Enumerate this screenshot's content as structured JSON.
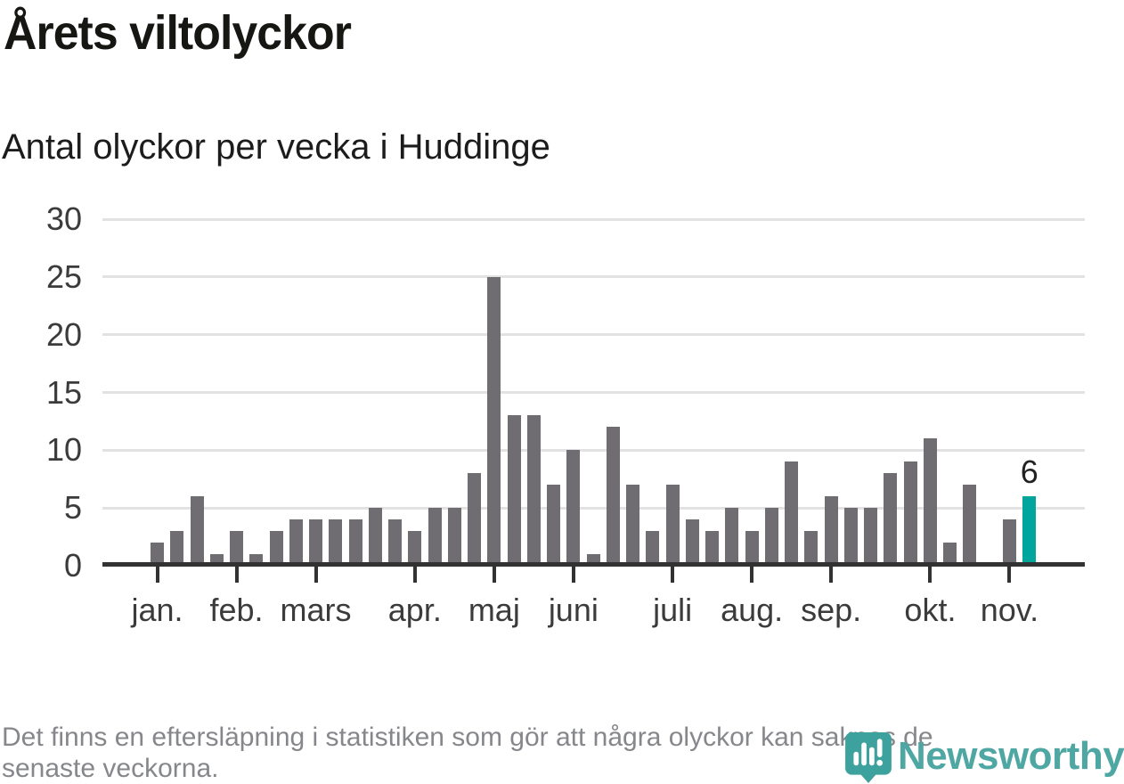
{
  "header": {
    "title": "Årets viltolyckor",
    "subtitle": "Antal olyckor per vecka i Huddinge"
  },
  "chart_data": {
    "type": "bar",
    "title": "Årets viltolyckor",
    "subtitle": "Antal olyckor per vecka i Huddinge",
    "x_unit": "vecka (week of year)",
    "values": [
      2,
      3,
      6,
      1,
      3,
      1,
      3,
      4,
      4,
      4,
      4,
      5,
      4,
      3,
      5,
      5,
      8,
      25,
      13,
      13,
      7,
      10,
      1,
      12,
      7,
      3,
      7,
      4,
      3,
      5,
      3,
      5,
      9,
      3,
      6,
      5,
      5,
      8,
      9,
      11,
      2,
      7,
      0,
      4,
      6
    ],
    "month_ticks": [
      {
        "label": "jan.",
        "week_index": 0
      },
      {
        "label": "feb.",
        "week_index": 4
      },
      {
        "label": "mars",
        "week_index": 8
      },
      {
        "label": "apr.",
        "week_index": 13
      },
      {
        "label": "maj",
        "week_index": 17
      },
      {
        "label": "juni",
        "week_index": 21
      },
      {
        "label": "juli",
        "week_index": 26
      },
      {
        "label": "aug.",
        "week_index": 30
      },
      {
        "label": "sep.",
        "week_index": 34
      },
      {
        "label": "okt.",
        "week_index": 39
      },
      {
        "label": "nov.",
        "week_index": 43
      }
    ],
    "y_ticks": [
      0,
      5,
      10,
      15,
      20,
      25,
      30
    ],
    "ylim": [
      0,
      30
    ],
    "grid": true,
    "legend": false,
    "bar_color": "#6f6d72",
    "highlight_color": "#00a69d",
    "highlight_index": 44,
    "highlight_label": "6"
  },
  "footer": {
    "lines": [
      "Det finns en eftersläpning i statistiken som gör att några olyckor kan saknas de",
      "senaste veckorna."
    ]
  },
  "logo": {
    "text": "Newsworthy",
    "text_color": "#4fa7a4",
    "icon_color": "#3da19d"
  }
}
